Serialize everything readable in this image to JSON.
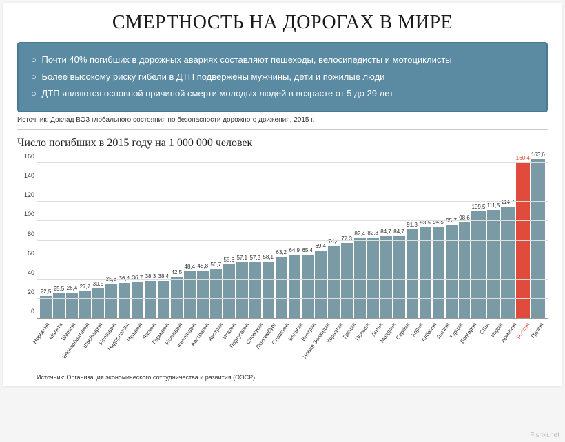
{
  "title": "СМЕРТНОСТЬ НА ДОРОГАХ В МИРЕ",
  "info_box": {
    "background": "#5a8ba3",
    "border": "#4a7a92",
    "text_color": "#ffffff",
    "items": [
      "Почти 40% погибших в дорожных авариях составляют пешеходы, велосипедисты и мотоциклисты",
      "Более высокому риску гибели в ДТП подвержены мужчины, дети и пожилые люди",
      "ДТП являются основной причиной смерти молодых людей в возрасте от 5 до 29 лет"
    ]
  },
  "source1": "Источник: Доклад ВОЗ глобального состояния по безопасности дорожного движения, 2015 г.",
  "subtitle": "Число погибших в 2015 году на 1 000 000 человек",
  "chart": {
    "type": "bar",
    "ylim": [
      0,
      170
    ],
    "yticks": [
      0,
      20,
      40,
      60,
      80,
      100,
      120,
      140,
      160
    ],
    "grid_color": "#dddddd",
    "axis_color": "#999999",
    "bar_color_default": "#7a9aa5",
    "bar_color_highlight": "#e14b3c",
    "value_fontsize": 8,
    "label_fontsize": 8,
    "label_rotation": -55,
    "data": [
      {
        "country": "Норвегия",
        "value": 22.5,
        "label": "22,5"
      },
      {
        "country": "Мальта",
        "value": 25.5,
        "label": "25,5"
      },
      {
        "country": "Швеция",
        "value": 26.4,
        "label": "26,4"
      },
      {
        "country": "Великобритания",
        "value": 27.7,
        "label": "27,7"
      },
      {
        "country": "Швейцария",
        "value": 30.5,
        "label": "30,5"
      },
      {
        "country": "Ирландия",
        "value": 35.8,
        "label": "35,8"
      },
      {
        "country": "Нидерланды",
        "value": 36.4,
        "label": "36,4"
      },
      {
        "country": "Испания",
        "value": 36.7,
        "label": "36,7"
      },
      {
        "country": "Япония",
        "value": 38.3,
        "label": "38,3"
      },
      {
        "country": "Германия",
        "value": 38.4,
        "label": "38,4"
      },
      {
        "country": "Исландия",
        "value": 42.5,
        "label": "42,5"
      },
      {
        "country": "Финляндия",
        "value": 48.4,
        "label": "48,4"
      },
      {
        "country": "Австралия",
        "value": 48.8,
        "label": "48,8"
      },
      {
        "country": "Австрия",
        "value": 50.7,
        "label": "50,7"
      },
      {
        "country": "Италия",
        "value": 55.6,
        "label": "55,6"
      },
      {
        "country": "Португалия",
        "value": 57.1,
        "label": "57,1"
      },
      {
        "country": "Словакия",
        "value": 57.3,
        "label": "57,3"
      },
      {
        "country": "Люксембург",
        "value": 58.1,
        "label": "58,1"
      },
      {
        "country": "Словения",
        "value": 63.2,
        "label": "63,2"
      },
      {
        "country": "Бельгия",
        "value": 64.9,
        "label": "64,9"
      },
      {
        "country": "Венгрия",
        "value": 65.4,
        "label": "65,4"
      },
      {
        "country": "Новая Зеландия",
        "value": 69.4,
        "label": "69,4"
      },
      {
        "country": "Хорватия",
        "value": 74.4,
        "label": "74,4"
      },
      {
        "country": "Греция",
        "value": 77.3,
        "label": "77,3"
      },
      {
        "country": "Польша",
        "value": 82.4,
        "label": "82,4"
      },
      {
        "country": "Литва",
        "value": 82.8,
        "label": "82,8"
      },
      {
        "country": "Молдова",
        "value": 84.7,
        "label": "84,7"
      },
      {
        "country": "Сербия",
        "value": 84.7,
        "label": "84,7"
      },
      {
        "country": "Корея",
        "value": 91.3,
        "label": "91,3"
      },
      {
        "country": "Албания",
        "value": 93.5,
        "label": "93,5"
      },
      {
        "country": "Латвия",
        "value": 94.5,
        "label": "94,5"
      },
      {
        "country": "Турция",
        "value": 95.7,
        "label": "95,7"
      },
      {
        "country": "Болгария",
        "value": 98.6,
        "label": "98,6"
      },
      {
        "country": "США",
        "value": 109.5,
        "label": "109,5"
      },
      {
        "country": "Индия",
        "value": 111.5,
        "label": "111,5"
      },
      {
        "country": "Армения",
        "value": 114.7,
        "label": "114,7"
      },
      {
        "country": "Россия",
        "value": 160.4,
        "label": "160,4",
        "highlight": true
      },
      {
        "country": "Грузия",
        "value": 163.6,
        "label": "163,6"
      }
    ]
  },
  "source2": "Источник: Организация экономического сотрудничества и развития (ОЭСР)",
  "watermark": "Fishki.net"
}
